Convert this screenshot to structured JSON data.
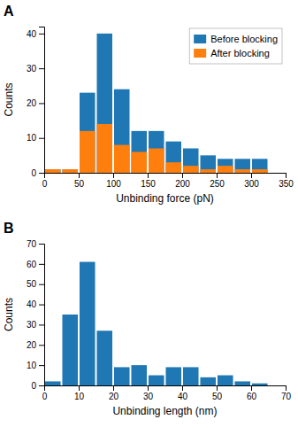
{
  "chart_data": [
    {
      "type": "histogram",
      "title": "A",
      "xlabel": "Unbinding force (pN)",
      "ylabel": "Counts",
      "bins": [
        0,
        25,
        50,
        75,
        100,
        125,
        150,
        175,
        200,
        225,
        250,
        275,
        300,
        325
      ],
      "series": [
        {
          "name": "Before blocking",
          "values": [
            1,
            1,
            23,
            40,
            24,
            12,
            12,
            9,
            7,
            5,
            4,
            4,
            4
          ]
        },
        {
          "name": "After blocking",
          "values": [
            1,
            1,
            12,
            14,
            8,
            6,
            7,
            3,
            2,
            1,
            2,
            1,
            1
          ]
        }
      ],
      "xlim": [
        0,
        350
      ],
      "ylim": [
        0,
        42
      ],
      "xticks": [
        0,
        50,
        100,
        150,
        200,
        250,
        300,
        350
      ],
      "yticks": [
        0,
        10,
        20,
        30,
        40
      ],
      "legend": "top-right",
      "grid": false
    },
    {
      "type": "bar",
      "title": "B",
      "xlabel": "Unbinding length (nm)",
      "ylabel": "Counts",
      "x": [
        2.5,
        7.5,
        12.5,
        17.5,
        22.5,
        27.5,
        32.5,
        37.5,
        42.5,
        47.5,
        52.5,
        57.5,
        62.5,
        67.5
      ],
      "values": [
        2,
        35,
        61,
        27,
        9,
        10,
        5,
        9,
        9,
        4,
        5,
        2,
        1,
        0
      ],
      "xlim": [
        0,
        70
      ],
      "ylim": [
        0,
        70
      ],
      "xticks": [
        0,
        10,
        20,
        30,
        40,
        50,
        60,
        70
      ],
      "yticks": [
        0,
        10,
        20,
        30,
        40,
        50,
        60,
        70
      ],
      "grid": false
    }
  ]
}
